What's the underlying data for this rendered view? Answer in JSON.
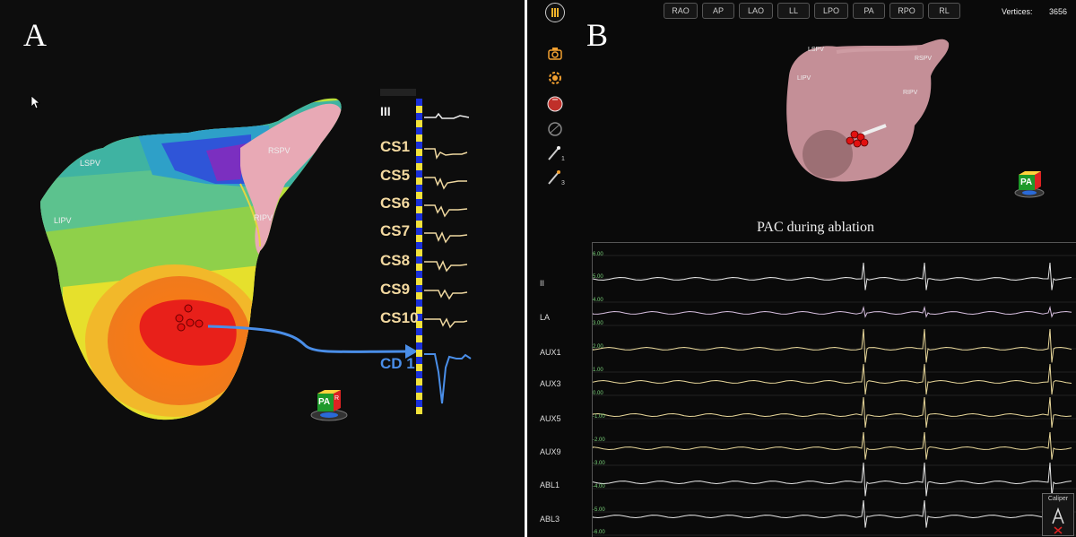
{
  "panel_a": {
    "letter": "A",
    "vein_labels": {
      "lspv": "LSPV",
      "rspv": "RSPV",
      "lipv": "LIPV",
      "ripv": "RIPV"
    },
    "channels": [
      "III",
      "CS1",
      "CS5",
      "CS6",
      "CS7",
      "CS8",
      "CS9",
      "CS10",
      "CD 1"
    ],
    "orientation_cube": {
      "front": "PA",
      "side": "R"
    }
  },
  "panel_b": {
    "letter": "B",
    "view_buttons": [
      "RAO",
      "AP",
      "LAO",
      "LL",
      "LPO",
      "PA",
      "RPO",
      "RL"
    ],
    "vertices_label": "Vertices:",
    "vertices_value": "3656",
    "vein_labels": {
      "lspv": "LSPV",
      "rspv": "RSPV",
      "lipv": "LIPV",
      "ripv": "RIPV"
    },
    "tool_subscripts": {
      "catheter1": "1",
      "catheter2": "3"
    },
    "orientation_cube": {
      "front": "PA"
    },
    "ecg_title": "PAC during ablation",
    "ecg_channels": [
      "II",
      "LA",
      "AUX1",
      "AUX3",
      "AUX5",
      "AUX9",
      "ABL1",
      "ABL3"
    ],
    "y_ticks": [
      "6.00",
      "5.00",
      "4.00",
      "3.00",
      "2.00",
      "1.00",
      "0.00",
      "-1.00",
      "-2.00",
      "-3.00",
      "-4.00",
      "-5.00",
      "-6.00"
    ],
    "caliper_label": "Caliper",
    "colors": {
      "tracing_yellow": "#e8d79a",
      "tracing_white": "#e6e6e6",
      "tracing_pink": "#d8c0e0",
      "tick_green": "#7bd47b"
    }
  }
}
